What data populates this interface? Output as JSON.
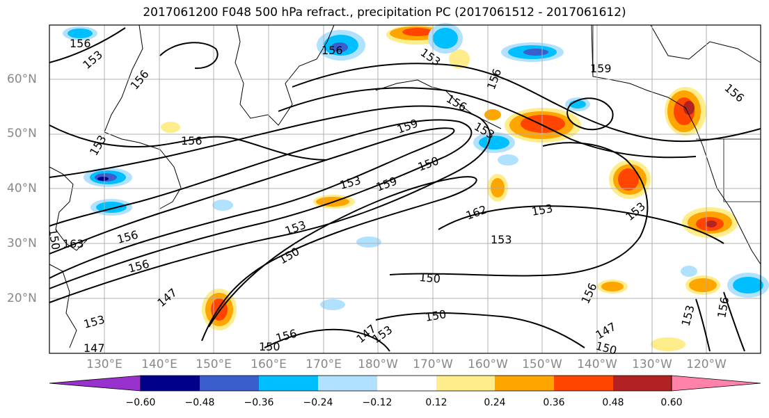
{
  "title": "2017061200 F048 500 hPa refract., precipitation PC (2017061512 - 2017061612)",
  "lat_labels": [
    "60°N",
    "50°N",
    "40°N",
    "30°N",
    "20°N"
  ],
  "lon_labels": [
    "130°E",
    "140°E",
    "150°E",
    "160°E",
    "170°E",
    "180°W",
    "170°W",
    "160°W",
    "150°W",
    "140°W",
    "130°W",
    "120°W"
  ],
  "colorbar": {
    "colors": [
      "#9932cc",
      "#00008b",
      "#3a5fcd",
      "#00bfff",
      "#b0e2ff",
      "#ffffff",
      "#ffec8b",
      "#ffa500",
      "#ff4500",
      "#b22222",
      "#ff82ab"
    ],
    "tick_labels": [
      "−0.60",
      "−0.48",
      "−0.36",
      "−0.24",
      "−0.12",
      "0.12",
      "0.24",
      "0.36",
      "0.48",
      "0.60"
    ]
  },
  "contour_labels": [
    "156",
    "153",
    "156",
    "156",
    "156",
    "159",
    "156",
    "153",
    "159",
    "156",
    "153",
    "156",
    "153",
    "153",
    "159",
    "150",
    "162",
    "153",
    "153",
    "153",
    "150",
    "163",
    "156",
    "156",
    "153",
    "150",
    "147",
    "150",
    "153",
    "150",
    "147",
    "156",
    "150",
    "147",
    "153",
    "156",
    "147",
    "150",
    "153",
    "156"
  ],
  "colors": {
    "land": "#ffffff",
    "contour": "#000000",
    "grid": "#b0b0b0",
    "axis_label": "#888888"
  }
}
